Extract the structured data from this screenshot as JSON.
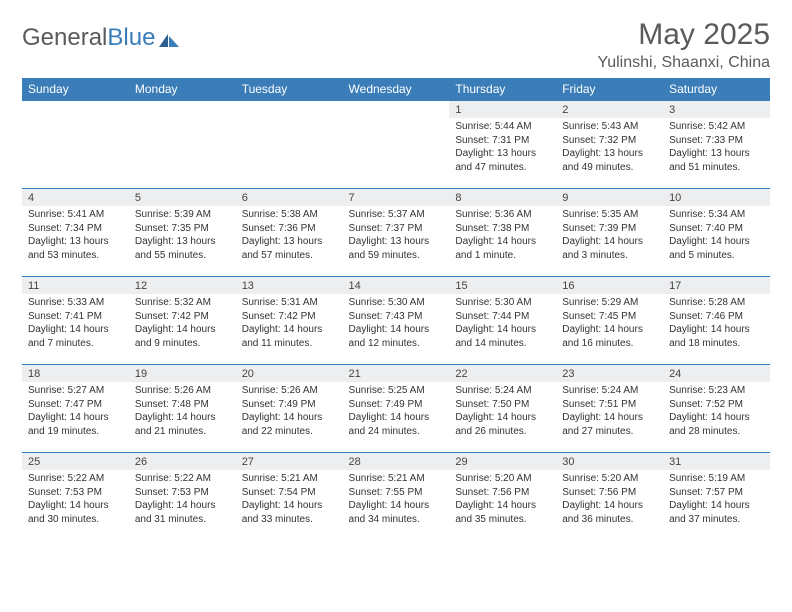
{
  "brand": {
    "part1": "General",
    "part2": "Blue"
  },
  "title": "May 2025",
  "location": "Yulinshi, Shaanxi, China",
  "colors": {
    "header_bg": "#3a7db8",
    "header_text": "#ffffff",
    "daynum_bg": "#eceef0",
    "border": "#3a7db8",
    "text": "#333333",
    "logo_gray": "#5a5a5a"
  },
  "weekdays": [
    "Sunday",
    "Monday",
    "Tuesday",
    "Wednesday",
    "Thursday",
    "Friday",
    "Saturday"
  ],
  "weeks": [
    [
      {
        "empty": true
      },
      {
        "empty": true
      },
      {
        "empty": true
      },
      {
        "empty": true
      },
      {
        "day": "1",
        "sunrise": "Sunrise: 5:44 AM",
        "sunset": "Sunset: 7:31 PM",
        "daylight": "Daylight: 13 hours and 47 minutes."
      },
      {
        "day": "2",
        "sunrise": "Sunrise: 5:43 AM",
        "sunset": "Sunset: 7:32 PM",
        "daylight": "Daylight: 13 hours and 49 minutes."
      },
      {
        "day": "3",
        "sunrise": "Sunrise: 5:42 AM",
        "sunset": "Sunset: 7:33 PM",
        "daylight": "Daylight: 13 hours and 51 minutes."
      }
    ],
    [
      {
        "day": "4",
        "sunrise": "Sunrise: 5:41 AM",
        "sunset": "Sunset: 7:34 PM",
        "daylight": "Daylight: 13 hours and 53 minutes."
      },
      {
        "day": "5",
        "sunrise": "Sunrise: 5:39 AM",
        "sunset": "Sunset: 7:35 PM",
        "daylight": "Daylight: 13 hours and 55 minutes."
      },
      {
        "day": "6",
        "sunrise": "Sunrise: 5:38 AM",
        "sunset": "Sunset: 7:36 PM",
        "daylight": "Daylight: 13 hours and 57 minutes."
      },
      {
        "day": "7",
        "sunrise": "Sunrise: 5:37 AM",
        "sunset": "Sunset: 7:37 PM",
        "daylight": "Daylight: 13 hours and 59 minutes."
      },
      {
        "day": "8",
        "sunrise": "Sunrise: 5:36 AM",
        "sunset": "Sunset: 7:38 PM",
        "daylight": "Daylight: 14 hours and 1 minute."
      },
      {
        "day": "9",
        "sunrise": "Sunrise: 5:35 AM",
        "sunset": "Sunset: 7:39 PM",
        "daylight": "Daylight: 14 hours and 3 minutes."
      },
      {
        "day": "10",
        "sunrise": "Sunrise: 5:34 AM",
        "sunset": "Sunset: 7:40 PM",
        "daylight": "Daylight: 14 hours and 5 minutes."
      }
    ],
    [
      {
        "day": "11",
        "sunrise": "Sunrise: 5:33 AM",
        "sunset": "Sunset: 7:41 PM",
        "daylight": "Daylight: 14 hours and 7 minutes."
      },
      {
        "day": "12",
        "sunrise": "Sunrise: 5:32 AM",
        "sunset": "Sunset: 7:42 PM",
        "daylight": "Daylight: 14 hours and 9 minutes."
      },
      {
        "day": "13",
        "sunrise": "Sunrise: 5:31 AM",
        "sunset": "Sunset: 7:42 PM",
        "daylight": "Daylight: 14 hours and 11 minutes."
      },
      {
        "day": "14",
        "sunrise": "Sunrise: 5:30 AM",
        "sunset": "Sunset: 7:43 PM",
        "daylight": "Daylight: 14 hours and 12 minutes."
      },
      {
        "day": "15",
        "sunrise": "Sunrise: 5:30 AM",
        "sunset": "Sunset: 7:44 PM",
        "daylight": "Daylight: 14 hours and 14 minutes."
      },
      {
        "day": "16",
        "sunrise": "Sunrise: 5:29 AM",
        "sunset": "Sunset: 7:45 PM",
        "daylight": "Daylight: 14 hours and 16 minutes."
      },
      {
        "day": "17",
        "sunrise": "Sunrise: 5:28 AM",
        "sunset": "Sunset: 7:46 PM",
        "daylight": "Daylight: 14 hours and 18 minutes."
      }
    ],
    [
      {
        "day": "18",
        "sunrise": "Sunrise: 5:27 AM",
        "sunset": "Sunset: 7:47 PM",
        "daylight": "Daylight: 14 hours and 19 minutes."
      },
      {
        "day": "19",
        "sunrise": "Sunrise: 5:26 AM",
        "sunset": "Sunset: 7:48 PM",
        "daylight": "Daylight: 14 hours and 21 minutes."
      },
      {
        "day": "20",
        "sunrise": "Sunrise: 5:26 AM",
        "sunset": "Sunset: 7:49 PM",
        "daylight": "Daylight: 14 hours and 22 minutes."
      },
      {
        "day": "21",
        "sunrise": "Sunrise: 5:25 AM",
        "sunset": "Sunset: 7:49 PM",
        "daylight": "Daylight: 14 hours and 24 minutes."
      },
      {
        "day": "22",
        "sunrise": "Sunrise: 5:24 AM",
        "sunset": "Sunset: 7:50 PM",
        "daylight": "Daylight: 14 hours and 26 minutes."
      },
      {
        "day": "23",
        "sunrise": "Sunrise: 5:24 AM",
        "sunset": "Sunset: 7:51 PM",
        "daylight": "Daylight: 14 hours and 27 minutes."
      },
      {
        "day": "24",
        "sunrise": "Sunrise: 5:23 AM",
        "sunset": "Sunset: 7:52 PM",
        "daylight": "Daylight: 14 hours and 28 minutes."
      }
    ],
    [
      {
        "day": "25",
        "sunrise": "Sunrise: 5:22 AM",
        "sunset": "Sunset: 7:53 PM",
        "daylight": "Daylight: 14 hours and 30 minutes."
      },
      {
        "day": "26",
        "sunrise": "Sunrise: 5:22 AM",
        "sunset": "Sunset: 7:53 PM",
        "daylight": "Daylight: 14 hours and 31 minutes."
      },
      {
        "day": "27",
        "sunrise": "Sunrise: 5:21 AM",
        "sunset": "Sunset: 7:54 PM",
        "daylight": "Daylight: 14 hours and 33 minutes."
      },
      {
        "day": "28",
        "sunrise": "Sunrise: 5:21 AM",
        "sunset": "Sunset: 7:55 PM",
        "daylight": "Daylight: 14 hours and 34 minutes."
      },
      {
        "day": "29",
        "sunrise": "Sunrise: 5:20 AM",
        "sunset": "Sunset: 7:56 PM",
        "daylight": "Daylight: 14 hours and 35 minutes."
      },
      {
        "day": "30",
        "sunrise": "Sunrise: 5:20 AM",
        "sunset": "Sunset: 7:56 PM",
        "daylight": "Daylight: 14 hours and 36 minutes."
      },
      {
        "day": "31",
        "sunrise": "Sunrise: 5:19 AM",
        "sunset": "Sunset: 7:57 PM",
        "daylight": "Daylight: 14 hours and 37 minutes."
      }
    ]
  ]
}
